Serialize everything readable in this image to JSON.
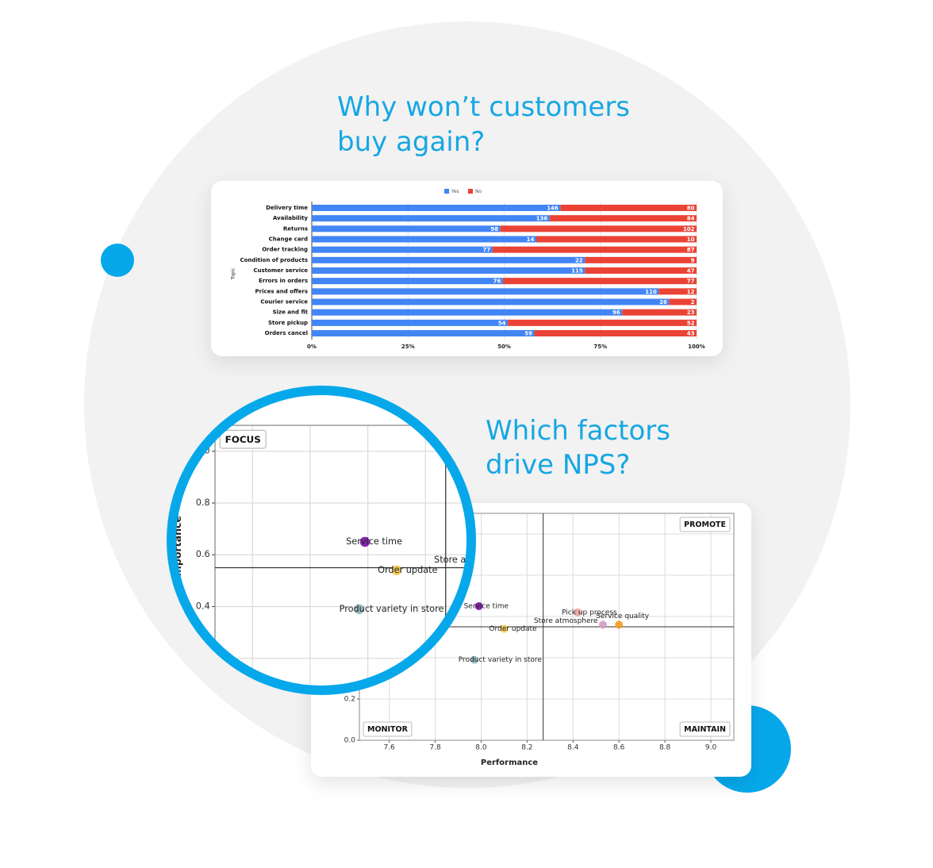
{
  "headings": [
    [
      "Why won’t customers",
      "buy again?"
    ],
    [
      "Which factors",
      "drive NPS?"
    ]
  ],
  "chart_data": [
    {
      "type": "bar",
      "orientation": "horizontal",
      "stacking": "percent",
      "y_label": "Topic",
      "legend": "top",
      "grid": true,
      "categories": [
        "Delivery time",
        "Availability",
        "Returns",
        "Change card",
        "Order tracking",
        "Condition of products",
        "Customer service",
        "Errors in orders",
        "Prices and offers",
        "Courier service",
        "Size and fit",
        "Store pickup",
        "Orders cancel"
      ],
      "series": [
        {
          "name": "Yes",
          "color": "#4285f4",
          "values": [
            146,
            136,
            98,
            14,
            77,
            22,
            115,
            76,
            110,
            26,
            96,
            54,
            59
          ]
        },
        {
          "name": "No",
          "color": "#ea4335",
          "values": [
            80,
            84,
            102,
            10,
            87,
            9,
            47,
            77,
            12,
            2,
            23,
            52,
            43
          ]
        }
      ],
      "xlim": [
        0,
        100
      ],
      "xticks": [
        {
          "value": 0,
          "label": "0%"
        },
        {
          "value": 25,
          "label": "25%"
        },
        {
          "value": 50,
          "label": "50%"
        },
        {
          "value": 75,
          "label": "75%"
        },
        {
          "value": 100,
          "label": "100%"
        }
      ]
    },
    {
      "type": "scatter",
      "x_label": "Performance",
      "y_label": "Importance",
      "grid": true,
      "quadrant_labels": [
        "FOCUS",
        "PROMOTE",
        "MONITOR",
        "MAINTAIN"
      ],
      "reference_lines": {
        "x": 8.27,
        "y": 0.55
      },
      "labels": [
        "Service time",
        "Order update",
        "Product variety in store",
        "Pick up process",
        "Store atmosphere",
        "Service quality"
      ],
      "x": [
        7.99,
        8.1,
        7.97,
        8.42,
        8.53,
        8.6
      ],
      "values": [
        0.65,
        0.54,
        0.39,
        0.62,
        0.56,
        0.56
      ],
      "colors": [
        "#7a0ea6",
        "#f7c948",
        "#8fb5b9",
        "#e8a3a3",
        "#d39ac4",
        "#f39a1e"
      ],
      "xlim": [
        7.47,
        9.1
      ],
      "ylim": [
        0,
        1.1
      ],
      "xticks": [
        7.6,
        7.8,
        {
          "value": 8,
          "label": "8.0"
        },
        8.2,
        8.4,
        8.6,
        8.8,
        {
          "value": 9,
          "label": "9.0"
        }
      ],
      "yticks": [
        {
          "value": 0,
          "label": "0.0"
        },
        0.2,
        0.4,
        0.6,
        0.8,
        {
          "value": 1,
          "label": "1.0"
        }
      ]
    }
  ]
}
